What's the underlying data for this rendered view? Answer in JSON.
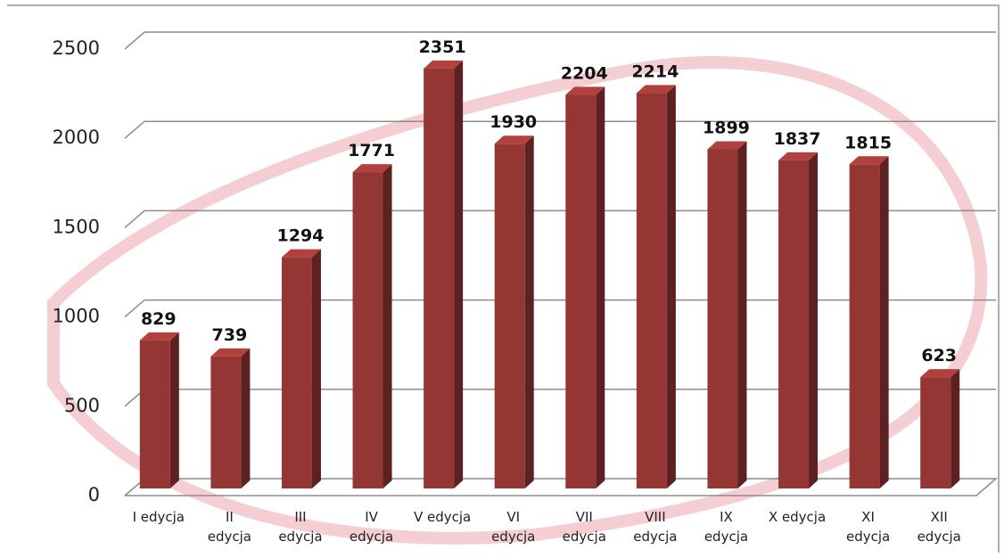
{
  "chart_data": {
    "type": "bar3d",
    "categories": [
      "I edycja",
      "II edycja",
      "III edycja",
      "IV edycja",
      "V edycja",
      "VI edycja",
      "VII edycja",
      "VIII edycja",
      "IX edycja",
      "X edycja",
      "XI edycja",
      "XII edycja"
    ],
    "values": [
      829,
      739,
      1294,
      1771,
      2351,
      1930,
      2204,
      2214,
      1899,
      1837,
      1815,
      623
    ],
    "color": "#943634",
    "ylim": [
      0,
      2500
    ],
    "yticks": [
      0,
      500,
      1000,
      1500,
      2000,
      2500
    ],
    "grid": true
  }
}
